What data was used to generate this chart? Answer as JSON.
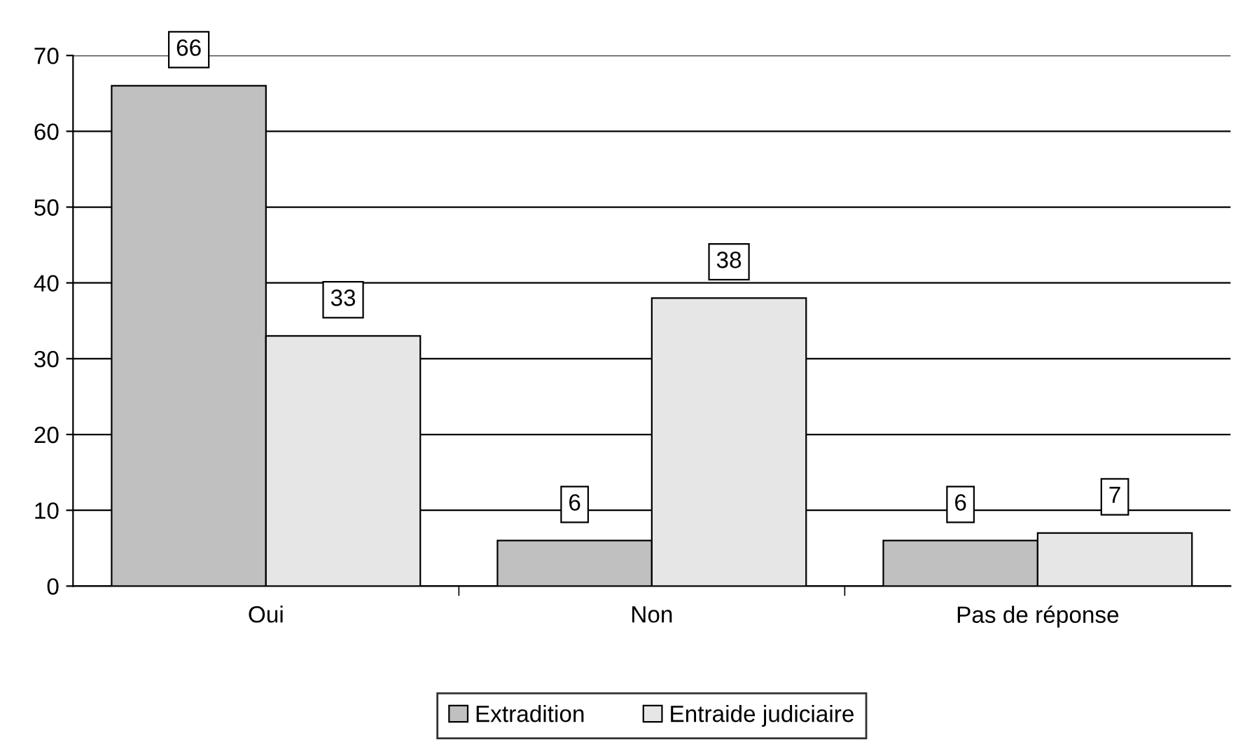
{
  "chart_data": {
    "type": "bar",
    "categories": [
      "Oui",
      "Non",
      "Pas de réponse"
    ],
    "series": [
      {
        "name": "Extradition",
        "color": "#c0c0c0",
        "values": [
          66,
          6,
          6
        ]
      },
      {
        "name": "Entraide judiciaire",
        "color": "#e6e6e6",
        "values": [
          33,
          38,
          7
        ]
      }
    ],
    "ylim": [
      0,
      70
    ],
    "yticks": [
      0,
      10,
      20,
      30,
      40,
      50,
      60,
      70
    ],
    "grid": "y",
    "legend": "bottom",
    "data_labels": true
  }
}
